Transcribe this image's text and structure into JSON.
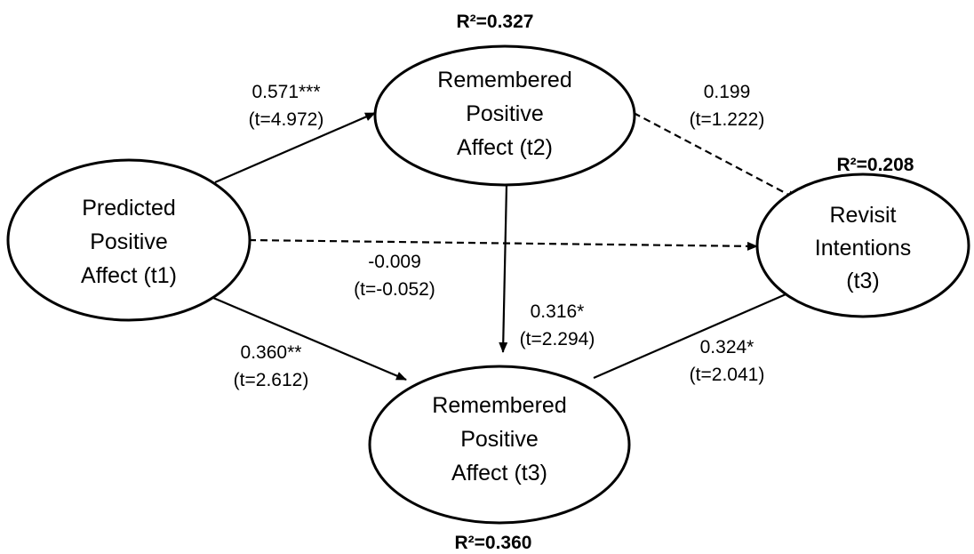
{
  "nodes": {
    "predicted_t1": {
      "lines": [
        "Predicted",
        "Positive",
        "Affect (t1)"
      ]
    },
    "remembered_t2": {
      "lines": [
        "Remembered",
        "Positive",
        "Affect (t2)"
      ],
      "r2": "R²=0.327"
    },
    "remembered_t3": {
      "lines": [
        "Remembered",
        "Positive",
        "Affect (t3)"
      ],
      "r2": "R²=0.360"
    },
    "revisit_t3": {
      "lines": [
        "Revisit",
        "Intentions",
        "(t3)"
      ],
      "r2": "R²=0.208"
    }
  },
  "paths": {
    "t1_to_t2": {
      "coef": "0.571***",
      "t": "(t=4.972)",
      "style": "solid"
    },
    "t2_to_revisit": {
      "coef": "0.199",
      "t": "(t=1.222)",
      "style": "dashed"
    },
    "t1_to_revisit": {
      "coef": "-0.009",
      "t": "(t=-0.052)",
      "style": "dashed"
    },
    "t2_to_t3": {
      "coef": "0.316*",
      "t": "(t=2.294)",
      "style": "solid"
    },
    "t1_to_t3": {
      "coef": "0.360**",
      "t": "(t=2.612)",
      "style": "solid"
    },
    "t3_to_revisit": {
      "coef": "0.324*",
      "t": "(t=2.041)",
      "style": "solid"
    }
  },
  "colors": {
    "stroke": "#000000",
    "background": "#ffffff"
  }
}
